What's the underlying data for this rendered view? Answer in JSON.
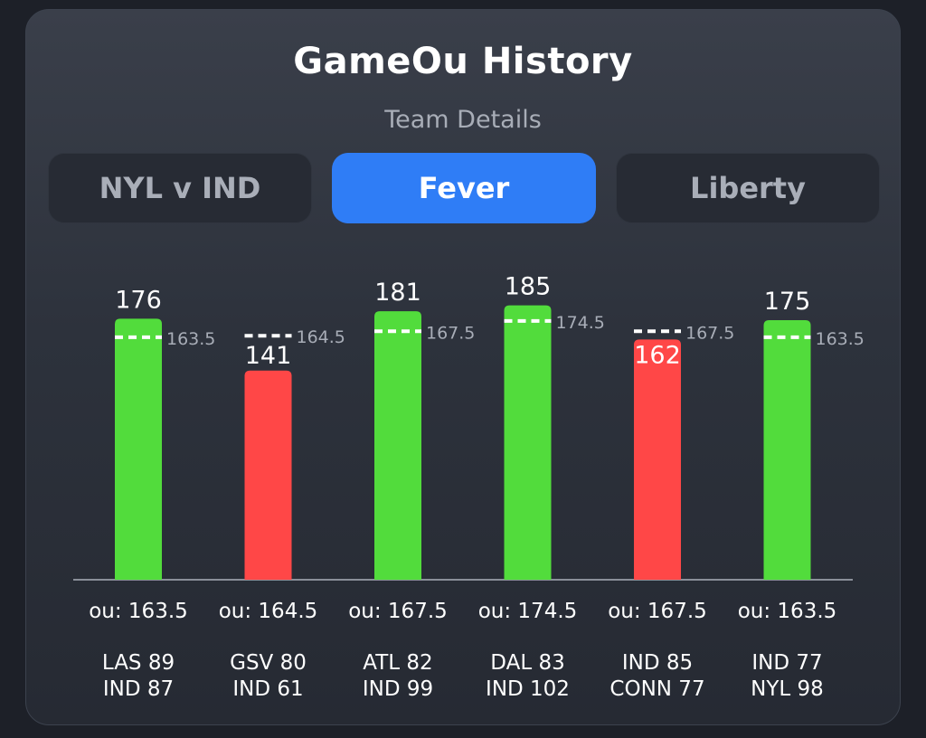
{
  "header": {
    "title": "GameOu History",
    "subtitle": "Team Details"
  },
  "tabs": [
    {
      "label": "NYL v IND",
      "active": false
    },
    {
      "label": "Fever",
      "active": true
    },
    {
      "label": "Liberty",
      "active": false
    }
  ],
  "colors": {
    "over": "#52dc3c",
    "under": "#ff4747",
    "line": "#ffffff",
    "ou_label": "#a8adb7",
    "axis": "#8a8f99"
  },
  "chart_data": {
    "type": "bar",
    "ylim": [
      0,
      200
    ],
    "bars": [
      {
        "total": 176,
        "ou": 163.5,
        "ou_label": "ou: 163.5",
        "result": "over",
        "team1": "LAS 89",
        "team2": "IND 87"
      },
      {
        "total": 141,
        "ou": 164.5,
        "ou_label": "ou: 164.5",
        "result": "under",
        "team1": "GSV 80",
        "team2": "IND 61"
      },
      {
        "total": 181,
        "ou": 167.5,
        "ou_label": "ou: 167.5",
        "result": "over",
        "team1": "ATL 82",
        "team2": "IND 99"
      },
      {
        "total": 185,
        "ou": 174.5,
        "ou_label": "ou: 174.5",
        "result": "over",
        "team1": "DAL 83",
        "team2": "IND 102"
      },
      {
        "total": 162,
        "ou": 167.5,
        "ou_label": "ou: 167.5",
        "result": "under",
        "team1": "IND 85",
        "team2": "CONN 77"
      },
      {
        "total": 175,
        "ou": 163.5,
        "ou_label": "ou: 163.5",
        "result": "over",
        "team1": "IND 77",
        "team2": "NYL 98"
      }
    ]
  }
}
